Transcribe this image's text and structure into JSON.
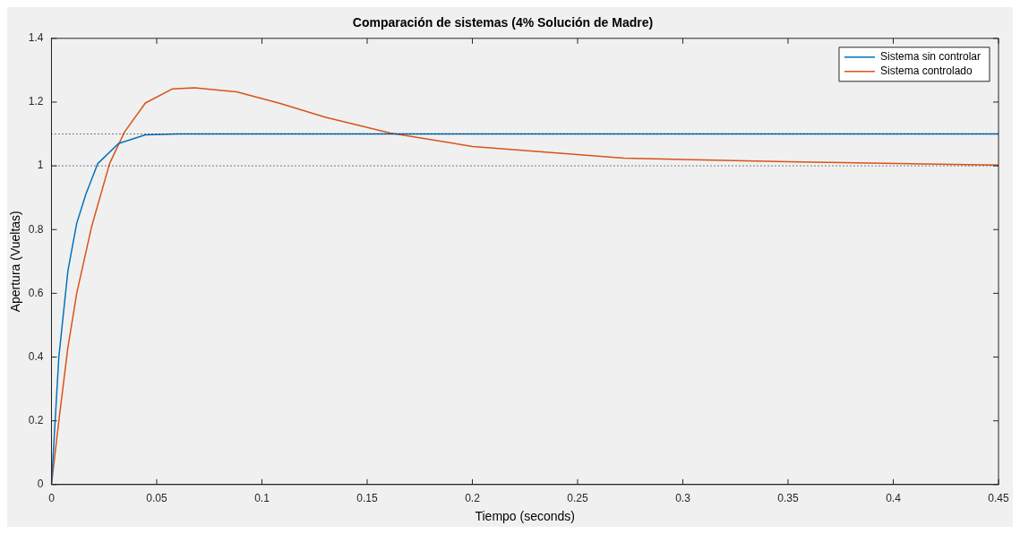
{
  "chart_data": {
    "type": "line",
    "title": "Comparación de sistemas (4% Solución de Madre)",
    "xlabel": "Tiempo (seconds)",
    "ylabel": "Apertura (Vueltas)",
    "xlim": [
      0,
      0.45
    ],
    "xticks": [
      0,
      0.05,
      0.1,
      0.15,
      0.2,
      0.25,
      0.3,
      0.35,
      0.4,
      0.45
    ],
    "ylim": [
      0,
      1.4
    ],
    "yticks": [
      0,
      0.2,
      0.4,
      0.6,
      0.8,
      1,
      1.2,
      1.4
    ],
    "grid": false,
    "legend": "top right",
    "marker": "none",
    "line_style": "solid",
    "ref_lines": [
      {
        "axis": "y",
        "value": 1.1,
        "color": "#000000",
        "line_style": "dotted"
      },
      {
        "axis": "y",
        "value": 1,
        "color": "#000000",
        "line_style": "dotted"
      }
    ],
    "series": [
      {
        "name": "Sistema sin controlar",
        "color": "#0072bd",
        "x": [
          0,
          0.0035,
          0.0078,
          0.012,
          0.0163,
          0.022,
          0.0318,
          0.0446,
          0.06,
          0.08,
          0.45
        ],
        "values": [
          0,
          0.4,
          0.67,
          0.82,
          0.91,
          1.007,
          1.07,
          1.097,
          1.1,
          1.1,
          1.1
        ]
      },
      {
        "name": "Sistema controlado",
        "color": "#d95319",
        "x": [
          0,
          0.0035,
          0.0078,
          0.012,
          0.0191,
          0.0276,
          0.0347,
          0.0446,
          0.0573,
          0.068,
          0.088,
          0.108,
          0.13,
          0.161,
          0.2,
          0.272,
          0.35,
          0.45
        ],
        "values": [
          0,
          0.2,
          0.43,
          0.6,
          0.81,
          1.007,
          1.106,
          1.197,
          1.241,
          1.245,
          1.232,
          1.197,
          1.153,
          1.103,
          1.061,
          1.024,
          1.013,
          1.002
        ]
      }
    ]
  }
}
